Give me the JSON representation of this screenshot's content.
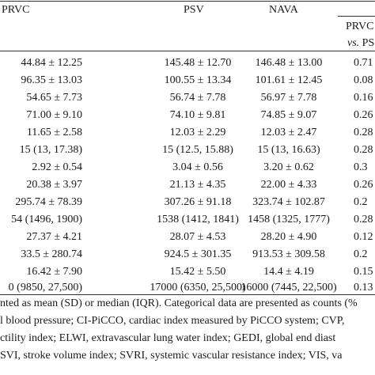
{
  "header": {
    "prvc": "PRVC",
    "psv": "PSV",
    "nava": "NAVA",
    "pairwise_title": "PRVC",
    "pairwise_vs": "vs.",
    "pairwise_target": "PS"
  },
  "rows": [
    {
      "prvc": "44.84 ± 12.25",
      "psv": "145.48 ± 12.70",
      "nava": "146.48 ± 13.00",
      "p": "0.71"
    },
    {
      "prvc": "96.35 ± 13.03",
      "psv": "100.55 ± 13.34",
      "nava": "101.61 ± 12.45",
      "p": "0.08"
    },
    {
      "prvc": "54.65 ± 7.73",
      "psv": "56.74 ± 7.78",
      "nava": "56.97 ± 7.78",
      "p": "0.16"
    },
    {
      "prvc": "71.00 ± 9.10",
      "psv": "74.10 ± 9.81",
      "nava": "74.85 ± 9.07",
      "p": "0.26"
    },
    {
      "prvc": "11.65 ± 2.58",
      "psv": "12.03 ± 2.29",
      "nava": "12.03 ± 2.47",
      "p": "0.28"
    },
    {
      "prvc": "15 (13, 17.38)",
      "psv": "15 (12.5, 15.88)",
      "nava": "15 (13, 16.63)",
      "p": "0.28"
    },
    {
      "prvc": "2.92 ± 0.54",
      "psv": "3.04 ± 0.56",
      "nava": "3.20 ± 0.62",
      "p": "0.3"
    },
    {
      "prvc": "20.38 ± 3.97",
      "psv": "21.13 ± 4.35",
      "nava": "22.00 ± 4.33",
      "p": "0.26"
    },
    {
      "prvc": "295.74 ± 78.39",
      "psv": "307.26 ± 91.18",
      "nava": "323.74 ± 102.87",
      "p": "0.2"
    },
    {
      "prvc": "54 (1496, 1900)",
      "psv": "1538 (1412, 1841)",
      "nava": "1458 (1325, 1777)",
      "p": "0.28"
    },
    {
      "prvc": "27.37 ± 4.21",
      "psv": "28.07 ± 4.53",
      "nava": "28.20 ± 4.90",
      "p": "0.12"
    },
    {
      "prvc": "33.5 ± 280.74",
      "psv": "924.5 ± 301.35",
      "nava": "913.53 ± 309.58",
      "p": "0.2"
    },
    {
      "prvc": "16.42 ± 7.90",
      "psv": "15.42 ± 5.50",
      "nava": "14.4 ± 4.19",
      "p": "0.15"
    },
    {
      "prvc": "0 (9850, 27,500)",
      "psv": "17000 (6350, 25,500)",
      "nava": "16000 (7445, 22,500)",
      "p": "0.13"
    }
  ],
  "notes": [
    "nted as mean (SD) or median (IQR). Categorical data are presented as counts (%",
    "l blood pressure; CI-PiCCO, cardiac index measured by PiCCO system; CVP,",
    "ctility index; ELWI, extravascular lung water index; GEDI, global end diast",
    "SVI, stroke volume index; SVRI, systemic vascular resistance index; VIS, va"
  ]
}
